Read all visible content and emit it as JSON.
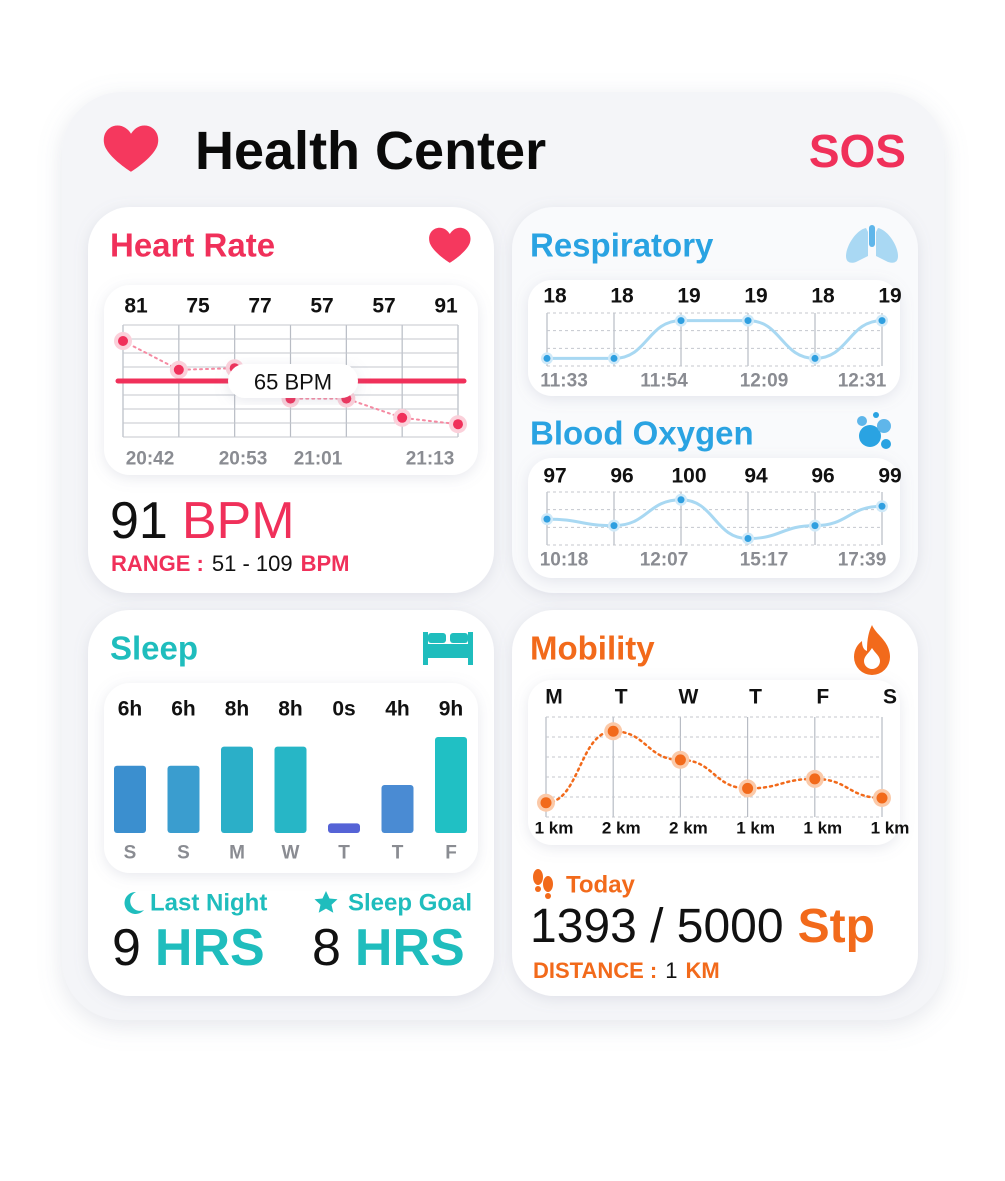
{
  "header": {
    "title": "Health Center",
    "sos": "SOS"
  },
  "heart_rate": {
    "title": "Heart Rate",
    "readings": [
      81,
      75,
      77,
      57,
      57,
      91
    ],
    "chart": {
      "type": "line",
      "values": [
        90,
        72,
        73,
        54,
        54,
        42,
        38
      ],
      "ylim": [
        30,
        100
      ],
      "color": "#f0305a",
      "average": {
        "value": 65,
        "label": "65 BPM"
      },
      "x_labels": [
        "20:42",
        "20:53",
        "21:01",
        "21:13"
      ]
    },
    "current": {
      "value": "91",
      "unit": "BPM"
    },
    "range": {
      "label": "RANGE :",
      "value": "51 - 109",
      "unit": "BPM"
    }
  },
  "respiratory": {
    "title": "Respiratory",
    "chart": {
      "type": "line",
      "values": [
        18,
        18,
        19,
        19,
        18,
        19
      ],
      "ylim": [
        17.8,
        19.2
      ],
      "color": "#2f9fe0",
      "x_labels": [
        "11:33",
        "11:54",
        "12:09",
        "12:31"
      ]
    }
  },
  "blood_oxygen": {
    "title": "Blood Oxygen",
    "chart": {
      "type": "line",
      "values": [
        97,
        96,
        100,
        94,
        96,
        99
      ],
      "ylim": [
        93,
        101.2
      ],
      "color": "#2f9fe0",
      "x_labels": [
        "10:18",
        "12:07",
        "15:17",
        "17:39"
      ]
    }
  },
  "sleep": {
    "title": "Sleep",
    "chart": {
      "type": "bar",
      "categories": [
        "S",
        "S",
        "M",
        "W",
        "T",
        "T",
        "F"
      ],
      "values": [
        6,
        6,
        8,
        8,
        0,
        4,
        9
      ],
      "value_labels": [
        "6h",
        "6h",
        "8h",
        "8h",
        "0s",
        "4h",
        "9h"
      ],
      "ylim": [
        -1,
        9
      ],
      "colors": [
        "#3b8fcf",
        "#3a9dcf",
        "#2bafc8",
        "#27b6c6",
        "#5563d6",
        "#4a8bd3",
        "#20c0c4"
      ]
    },
    "last_night": {
      "label": "Last Night",
      "value": "9",
      "unit": "HRS"
    },
    "goal": {
      "label": "Sleep Goal",
      "value": "8",
      "unit": "HRS"
    }
  },
  "mobility": {
    "title": "Mobility",
    "chart": {
      "type": "line",
      "categories": [
        "M",
        "T",
        "W",
        "T",
        "F",
        "S"
      ],
      "values": [
        0.9,
        2.4,
        1.8,
        1.2,
        1.4,
        1.0
      ],
      "value_labels": [
        "1 km",
        "2 km",
        "2 km",
        "1 km",
        "1 km",
        "1 km"
      ],
      "ylim": [
        0.6,
        2.7
      ],
      "color": "#f26a1b"
    },
    "today": {
      "label": "Today",
      "steps": "1393 / 5000",
      "unit": "Stp"
    },
    "distance": {
      "label": "DISTANCE :",
      "value": "1",
      "unit": "KM"
    }
  }
}
